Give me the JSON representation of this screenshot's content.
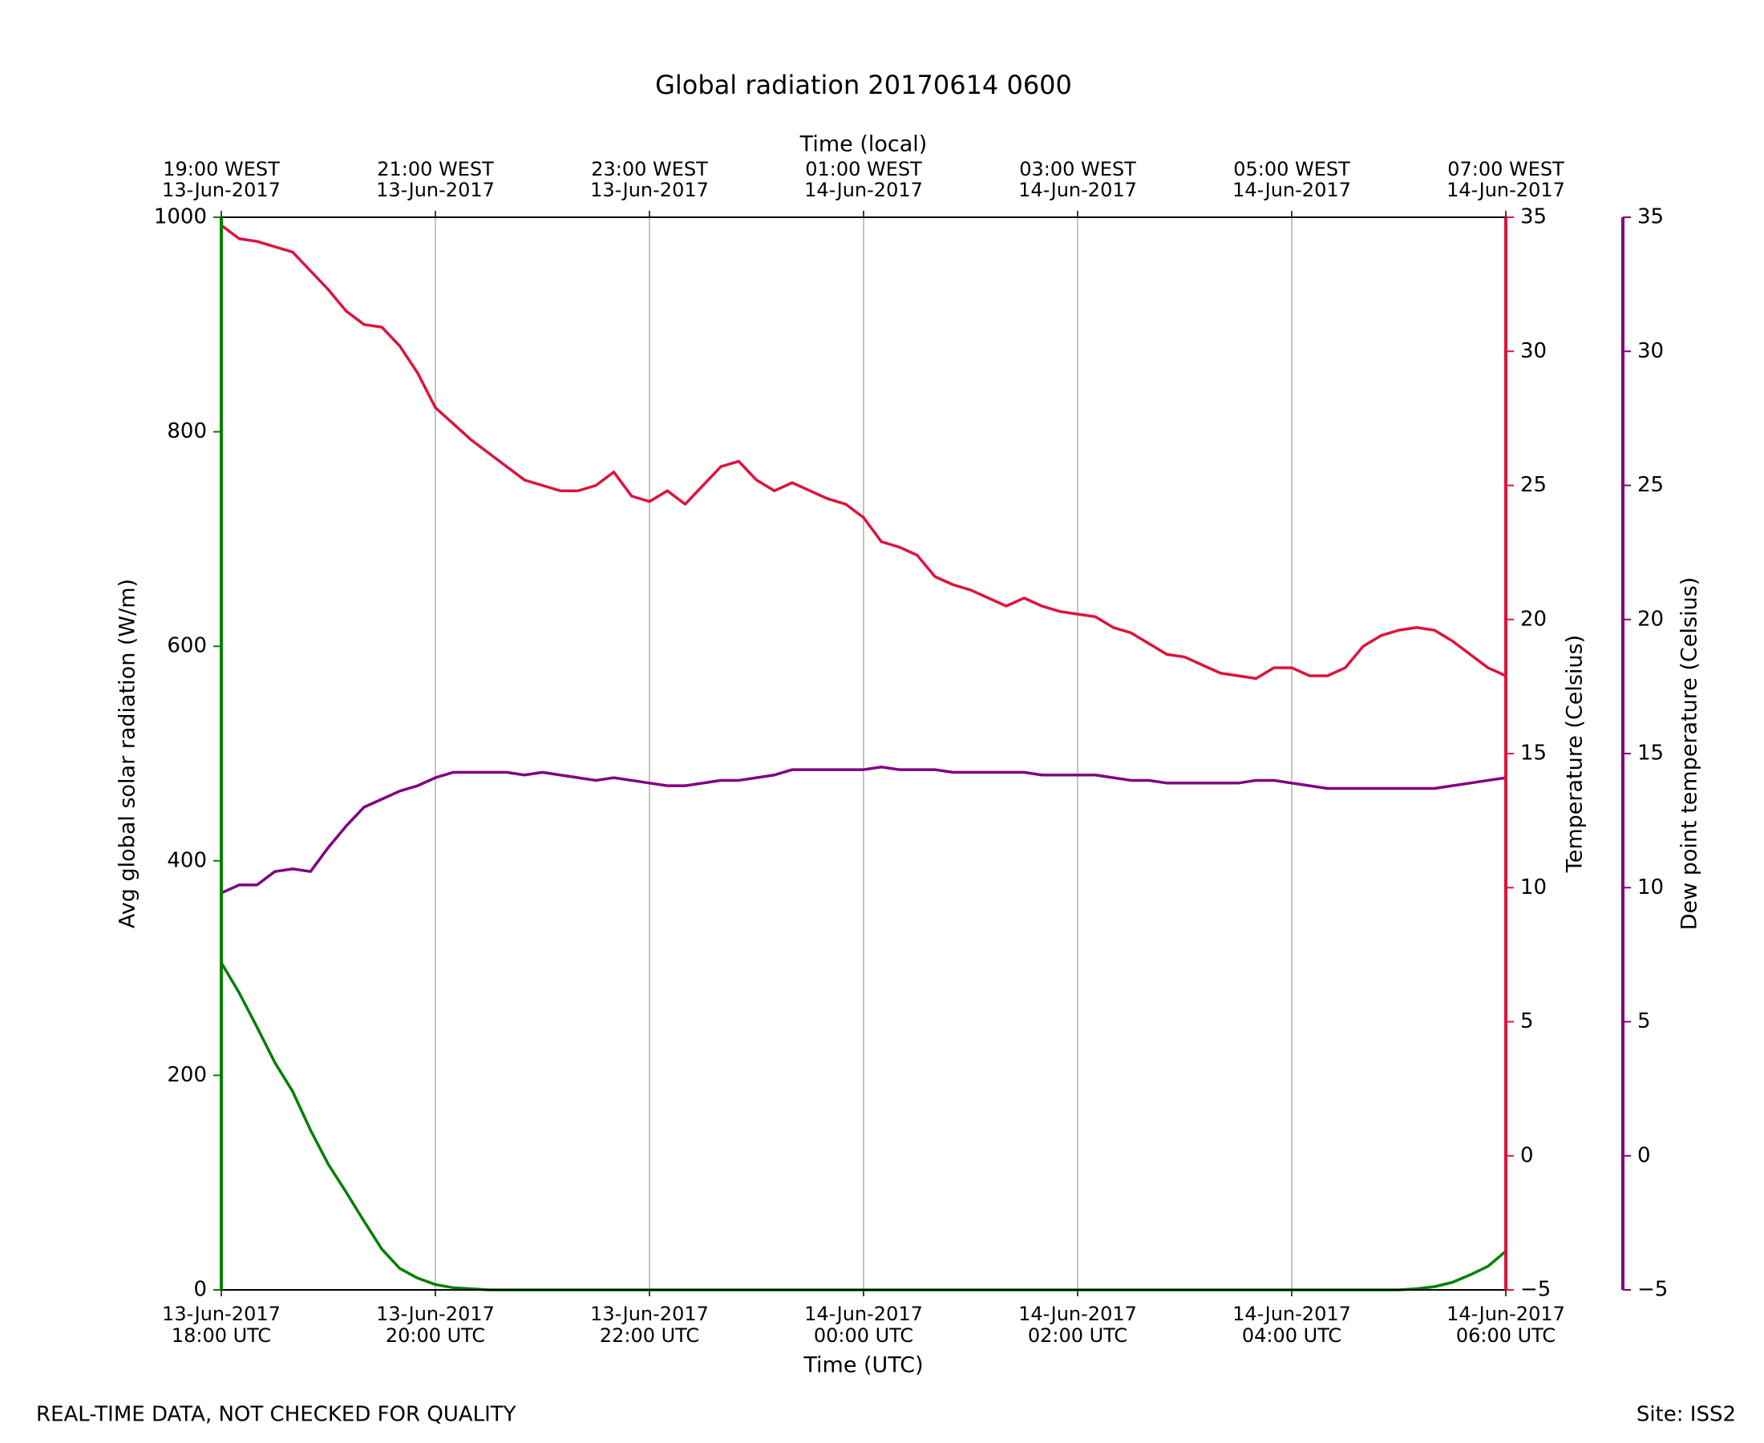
{
  "chart_data": {
    "type": "line",
    "title": "Global radiation 20170614 0600",
    "xlabel": "Time (UTC)",
    "x2label": "Time (local)",
    "ylabel": "Avg global solar radiation (W/m)",
    "y2label": "Temperature (Celsius)",
    "y3label": "Dew point temperature (Celsius)",
    "footer_left": "REAL-TIME DATA, NOT CHECKED FOR QUALITY",
    "footer_right": "Site: ISS2",
    "grid": true,
    "xlim": [
      "2017-06-13T18:00",
      "2017-06-14T06:00"
    ],
    "xticks": [
      {
        "value": "2017-06-13T18:00",
        "label": [
          "13-Jun-2017",
          "18:00 UTC"
        ]
      },
      {
        "value": "2017-06-13T20:00",
        "label": [
          "13-Jun-2017",
          "20:00 UTC"
        ]
      },
      {
        "value": "2017-06-13T22:00",
        "label": [
          "13-Jun-2017",
          "22:00 UTC"
        ]
      },
      {
        "value": "2017-06-14T00:00",
        "label": [
          "14-Jun-2017",
          "00:00 UTC"
        ]
      },
      {
        "value": "2017-06-14T02:00",
        "label": [
          "14-Jun-2017",
          "02:00 UTC"
        ]
      },
      {
        "value": "2017-06-14T04:00",
        "label": [
          "14-Jun-2017",
          "04:00 UTC"
        ]
      },
      {
        "value": "2017-06-14T06:00",
        "label": [
          "14-Jun-2017",
          "06:00 UTC"
        ]
      }
    ],
    "x2ticks": [
      {
        "value": "2017-06-13T18:00",
        "label": [
          "19:00 WEST",
          "13-Jun-2017"
        ]
      },
      {
        "value": "2017-06-13T20:00",
        "label": [
          "21:00 WEST",
          "13-Jun-2017"
        ]
      },
      {
        "value": "2017-06-13T22:00",
        "label": [
          "23:00 WEST",
          "13-Jun-2017"
        ]
      },
      {
        "value": "2017-06-14T00:00",
        "label": [
          "01:00 WEST",
          "14-Jun-2017"
        ]
      },
      {
        "value": "2017-06-14T02:00",
        "label": [
          "03:00 WEST",
          "14-Jun-2017"
        ]
      },
      {
        "value": "2017-06-14T04:00",
        "label": [
          "05:00 WEST",
          "14-Jun-2017"
        ]
      },
      {
        "value": "2017-06-14T06:00",
        "label": [
          "07:00 WEST",
          "14-Jun-2017"
        ]
      }
    ],
    "ylim": [
      0,
      1000
    ],
    "yticks": [
      0,
      200,
      400,
      600,
      800,
      1000
    ],
    "y2lim": [
      -5,
      35
    ],
    "y2ticks": [
      {
        "value": -5,
        "label": "−5"
      },
      0,
      5,
      10,
      15,
      20,
      25,
      30,
      35
    ],
    "y3lim": [
      -5,
      35
    ],
    "y3ticks": [
      {
        "value": -5,
        "label": "−5"
      },
      0,
      5,
      10,
      15,
      20,
      25,
      30,
      35
    ],
    "y_color": "#008000",
    "y2_color": "#dc143c",
    "y3_color": "#800080",
    "x": [
      "2017-06-13T18:00",
      "2017-06-13T18:10",
      "2017-06-13T18:20",
      "2017-06-13T18:30",
      "2017-06-13T18:40",
      "2017-06-13T18:50",
      "2017-06-13T19:00",
      "2017-06-13T19:10",
      "2017-06-13T19:20",
      "2017-06-13T19:30",
      "2017-06-13T19:40",
      "2017-06-13T19:50",
      "2017-06-13T20:00",
      "2017-06-13T20:10",
      "2017-06-13T20:20",
      "2017-06-13T20:30",
      "2017-06-13T20:40",
      "2017-06-13T20:50",
      "2017-06-13T21:00",
      "2017-06-13T21:10",
      "2017-06-13T21:20",
      "2017-06-13T21:30",
      "2017-06-13T21:40",
      "2017-06-13T21:50",
      "2017-06-13T22:00",
      "2017-06-13T22:10",
      "2017-06-13T22:20",
      "2017-06-13T22:30",
      "2017-06-13T22:40",
      "2017-06-13T22:50",
      "2017-06-13T23:00",
      "2017-06-13T23:10",
      "2017-06-13T23:20",
      "2017-06-13T23:30",
      "2017-06-13T23:40",
      "2017-06-13T23:50",
      "2017-06-14T00:00",
      "2017-06-14T00:10",
      "2017-06-14T00:20",
      "2017-06-14T00:30",
      "2017-06-14T00:40",
      "2017-06-14T00:50",
      "2017-06-14T01:00",
      "2017-06-14T01:10",
      "2017-06-14T01:20",
      "2017-06-14T01:30",
      "2017-06-14T01:40",
      "2017-06-14T01:50",
      "2017-06-14T02:00",
      "2017-06-14T02:10",
      "2017-06-14T02:20",
      "2017-06-14T02:30",
      "2017-06-14T02:40",
      "2017-06-14T02:50",
      "2017-06-14T03:00",
      "2017-06-14T03:10",
      "2017-06-14T03:20",
      "2017-06-14T03:30",
      "2017-06-14T03:40",
      "2017-06-14T03:50",
      "2017-06-14T04:00",
      "2017-06-14T04:10",
      "2017-06-14T04:20",
      "2017-06-14T04:30",
      "2017-06-14T04:40",
      "2017-06-14T04:50",
      "2017-06-14T05:00",
      "2017-06-14T05:10",
      "2017-06-14T05:20",
      "2017-06-14T05:30",
      "2017-06-14T05:40",
      "2017-06-14T05:50",
      "2017-06-14T06:00"
    ],
    "series": [
      {
        "name": "Avg global solar radiation",
        "color": "#008000",
        "axis": "y",
        "values": [
          305,
          277,
          245,
          212,
          185,
          149,
          117,
          91,
          64,
          38,
          20,
          11,
          5,
          2,
          1,
          0,
          0,
          0,
          0,
          0,
          0,
          0,
          0,
          0,
          0,
          0,
          0,
          0,
          0,
          0,
          0,
          0,
          0,
          0,
          0,
          0,
          0,
          0,
          0,
          0,
          0,
          0,
          0,
          0,
          0,
          0,
          0,
          0,
          0,
          0,
          0,
          0,
          0,
          0,
          0,
          0,
          0,
          0,
          0,
          0,
          0,
          0,
          0,
          0,
          0,
          0,
          0,
          1,
          3,
          7,
          14,
          22,
          36
        ]
      },
      {
        "name": "Temperature",
        "color": "#dc143c",
        "axis": "y2",
        "values": [
          34.7,
          34.2,
          34.1,
          33.9,
          33.7,
          33.0,
          32.3,
          31.5,
          31.0,
          30.9,
          30.2,
          29.2,
          27.9,
          27.3,
          26.7,
          26.2,
          25.7,
          25.2,
          25.0,
          24.8,
          24.8,
          25.0,
          25.5,
          24.6,
          24.4,
          24.8,
          24.3,
          25.0,
          25.7,
          25.9,
          25.2,
          24.8,
          25.1,
          24.8,
          24.5,
          24.3,
          23.8,
          22.9,
          22.7,
          22.4,
          21.6,
          21.3,
          21.1,
          20.8,
          20.5,
          20.8,
          20.5,
          20.3,
          20.2,
          20.1,
          19.7,
          19.5,
          19.1,
          18.7,
          18.6,
          18.3,
          18.0,
          17.9,
          17.8,
          18.2,
          18.2,
          17.9,
          17.9,
          18.2,
          19.0,
          19.4,
          19.6,
          19.7,
          19.6,
          19.2,
          18.7,
          18.2,
          17.9
        ]
      },
      {
        "name": "Dew point temperature",
        "color": "#800080",
        "axis": "y3",
        "values": [
          9.8,
          10.1,
          10.1,
          10.6,
          10.7,
          10.6,
          11.5,
          12.3,
          13.0,
          13.3,
          13.6,
          13.8,
          14.1,
          14.3,
          14.3,
          14.3,
          14.3,
          14.2,
          14.3,
          14.2,
          14.1,
          14.0,
          14.1,
          14.0,
          13.9,
          13.8,
          13.8,
          13.9,
          14.0,
          14.0,
          14.1,
          14.2,
          14.4,
          14.4,
          14.4,
          14.4,
          14.4,
          14.5,
          14.4,
          14.4,
          14.4,
          14.3,
          14.3,
          14.3,
          14.3,
          14.3,
          14.2,
          14.2,
          14.2,
          14.2,
          14.1,
          14.0,
          14.0,
          13.9,
          13.9,
          13.9,
          13.9,
          13.9,
          14.0,
          14.0,
          13.9,
          13.8,
          13.7,
          13.7,
          13.7,
          13.7,
          13.7,
          13.7,
          13.7,
          13.8,
          13.9,
          14.0,
          14.1
        ]
      }
    ]
  }
}
